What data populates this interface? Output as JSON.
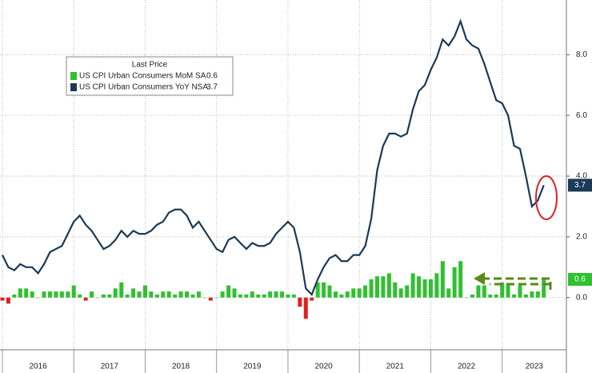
{
  "chart_data": {
    "type": "bar_line",
    "legend_title": "Last Price",
    "legend_position": "upper left",
    "grid": true,
    "negative_color": "#e02020",
    "x": [
      2016,
      2016.083,
      2016.167,
      2016.25,
      2016.333,
      2016.417,
      2016.5,
      2016.583,
      2016.667,
      2016.75,
      2016.833,
      2016.917,
      2017,
      2017.083,
      2017.167,
      2017.25,
      2017.333,
      2017.417,
      2017.5,
      2017.583,
      2017.667,
      2017.75,
      2017.833,
      2017.917,
      2018,
      2018.083,
      2018.167,
      2018.25,
      2018.333,
      2018.417,
      2018.5,
      2018.583,
      2018.667,
      2018.75,
      2018.833,
      2018.917,
      2019,
      2019.083,
      2019.167,
      2019.25,
      2019.333,
      2019.417,
      2019.5,
      2019.583,
      2019.667,
      2019.75,
      2019.833,
      2019.917,
      2020,
      2020.083,
      2020.167,
      2020.25,
      2020.333,
      2020.417,
      2020.5,
      2020.583,
      2020.667,
      2020.75,
      2020.833,
      2020.917,
      2021,
      2021.083,
      2021.167,
      2021.25,
      2021.333,
      2021.417,
      2021.5,
      2021.583,
      2021.667,
      2021.75,
      2021.833,
      2021.917,
      2022,
      2022.083,
      2022.167,
      2022.25,
      2022.333,
      2022.417,
      2022.5,
      2022.583,
      2022.667,
      2022.75,
      2022.833,
      2022.917,
      2023,
      2023.083,
      2023.167,
      2023.25,
      2023.333,
      2023.417,
      2023.5,
      2023.583
    ],
    "xlim": [
      2016,
      2023.9
    ],
    "xticks": [
      2016,
      2017,
      2018,
      2019,
      2020,
      2021,
      2022,
      2023
    ],
    "ylim": [
      -1.72,
      9.8
    ],
    "yticks": [
      {
        "value": 0,
        "label": "0.0"
      },
      {
        "value": 2,
        "label": "2.0"
      },
      {
        "value": 4,
        "label": "4.0"
      },
      {
        "value": 6,
        "label": "6.0"
      },
      {
        "value": 8,
        "label": "8.0"
      }
    ],
    "series": [
      {
        "name": "US CPI Urban Consumers MoM SA",
        "kind": "bar",
        "color": "#2fc12f",
        "values": [
          -0.1,
          -0.2,
          0.1,
          0.3,
          0.3,
          0.2,
          0.0,
          0.2,
          0.2,
          0.2,
          0.2,
          0.2,
          0.4,
          0.1,
          -0.1,
          0.2,
          0.0,
          0.1,
          0.1,
          0.3,
          0.5,
          0.1,
          0.3,
          0.2,
          0.4,
          0.2,
          0.1,
          0.2,
          0.2,
          0.1,
          0.2,
          0.2,
          0.1,
          0.2,
          0.0,
          -0.1,
          0.0,
          0.2,
          0.4,
          0.3,
          0.1,
          0.1,
          0.2,
          0.1,
          0.1,
          0.2,
          0.2,
          0.2,
          0.1,
          0.1,
          -0.3,
          -0.7,
          -0.1,
          0.5,
          0.5,
          0.4,
          0.2,
          0.1,
          0.2,
          0.3,
          0.3,
          0.4,
          0.6,
          0.7,
          0.7,
          0.8,
          0.5,
          0.3,
          0.4,
          0.8,
          0.7,
          0.6,
          0.6,
          0.8,
          1.2,
          0.3,
          1.0,
          1.2,
          0.0,
          0.1,
          0.4,
          0.4,
          0.1,
          0.1,
          0.5,
          0.4,
          0.1,
          0.4,
          0.1,
          0.2,
          0.2,
          0.6
        ]
      },
      {
        "name": "US CPI Urban Consumers YoY NSA",
        "kind": "line",
        "color": "#1b3a57",
        "values": [
          1.4,
          1.0,
          0.9,
          1.1,
          1.0,
          1.0,
          0.8,
          1.1,
          1.5,
          1.6,
          1.7,
          2.1,
          2.5,
          2.7,
          2.4,
          2.2,
          1.9,
          1.6,
          1.7,
          1.9,
          2.2,
          2.0,
          2.2,
          2.1,
          2.1,
          2.2,
          2.4,
          2.5,
          2.8,
          2.9,
          2.9,
          2.7,
          2.3,
          2.5,
          2.2,
          1.9,
          1.6,
          1.5,
          1.9,
          2.0,
          1.8,
          1.6,
          1.8,
          1.7,
          1.7,
          1.8,
          2.1,
          2.3,
          2.5,
          2.3,
          1.5,
          0.3,
          0.1,
          0.6,
          1.0,
          1.3,
          1.4,
          1.2,
          1.2,
          1.4,
          1.4,
          1.7,
          2.6,
          4.2,
          5.0,
          5.4,
          5.4,
          5.3,
          5.4,
          6.2,
          6.8,
          7.0,
          7.5,
          7.9,
          8.5,
          8.3,
          8.6,
          9.1,
          8.5,
          8.3,
          8.2,
          7.7,
          7.1,
          6.5,
          6.4,
          6.0,
          5.0,
          4.9,
          4.0,
          3.0,
          3.2,
          3.7
        ]
      }
    ]
  }
}
